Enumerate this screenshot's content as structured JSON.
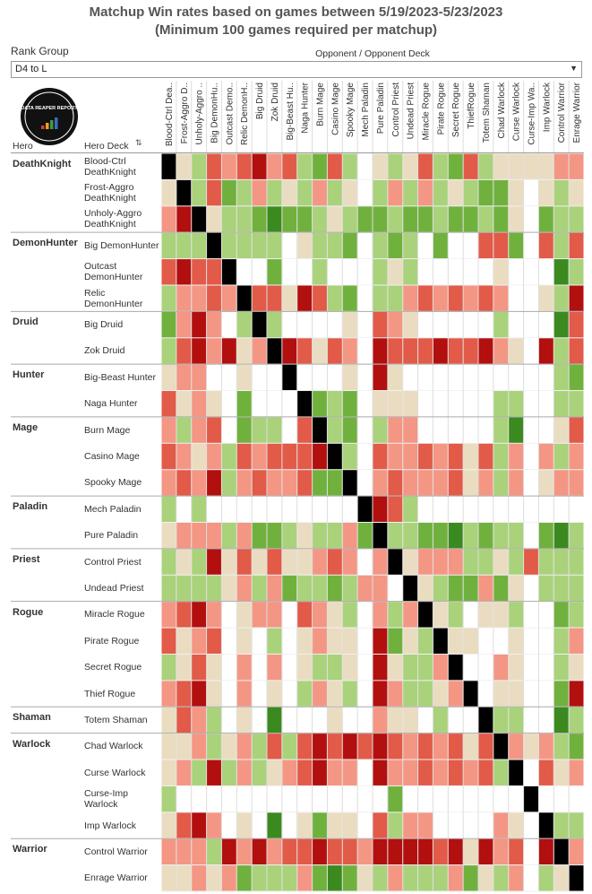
{
  "chart_data": {
    "type": "heatmap",
    "title": "Matchup Win rates based on games between 5/19/2023-5/23/2023",
    "subtitle": "(Minimum 100 games required per matchup)",
    "filter_label": "Rank Group",
    "filter_value": "D4 to L",
    "column_header": "Opponent / Opponent Deck",
    "row_header_hero": "Hero",
    "row_header_deck": "Hero Deck",
    "logo_text": "DATA REAPER REPORT",
    "columns": [
      "Blood-Ctrl Dea..",
      "Frost-Aggro D..",
      "Unholy-Aggro ..",
      "Big DemonHu..",
      "Outcast Demo..",
      "Relic DemonH..",
      "Big Druid",
      "Zok Druid",
      "Big-Beast Hu..",
      "Naga Hunter",
      "Burn Mage",
      "Casino Mage",
      "Spooky Mage",
      "Mech Paladin",
      "Pure Paladin",
      "Control Priest",
      "Undead Priest",
      "Miracle Rogue",
      "Pirate Rogue",
      "Secret Rogue",
      "ThiefRogue",
      "Totem Shaman",
      "Chad Warlock",
      "Curse Warlock",
      "Curse-Imp Wa..",
      "Imp Warlock",
      "Control Warrior",
      "Enrage Warrior"
    ],
    "row_heroes": [
      "DeathKnight",
      null,
      null,
      "DemonHunter",
      null,
      null,
      "Druid",
      null,
      "Hunter",
      null,
      "Mage",
      null,
      null,
      "Paladin",
      null,
      "Priest",
      null,
      "Rogue",
      null,
      null,
      null,
      "Shaman",
      "Warlock",
      null,
      null,
      null,
      "Warrior",
      null
    ],
    "rows": [
      "Blood-Ctrl\nDeathKnight",
      "Frost-Aggro\nDeathKnight",
      "Unholy-Aggro\nDeathKnight",
      "Big DemonHunter",
      "Outcast\nDemonHunter",
      "Relic\nDemonHunter",
      "Big Druid",
      "Zok Druid",
      "Big-Beast Hunter",
      "Naga Hunter",
      "Burn Mage",
      "Casino Mage",
      "Spooky Mage",
      "Mech Paladin",
      "Pure Paladin",
      "Control Priest",
      "Undead Priest",
      "Miracle Rogue",
      "Pirate Rogue",
      "Secret Rogue",
      "Thief Rogue",
      "Totem Shaman",
      "Chad Warlock",
      "Curse Warlock",
      "Curse-Imp\nWarlock",
      "Imp Warlock",
      "Control Warrior",
      "Enrage Warrior"
    ],
    "values": [
      [
        null,
        50,
        54,
        42,
        46,
        42,
        36,
        46,
        42,
        54,
        58,
        42,
        54,
        null,
        50,
        54,
        50,
        42,
        54,
        58,
        42,
        54,
        50,
        50,
        50,
        50,
        46,
        46
      ],
      [
        50,
        null,
        54,
        42,
        58,
        54,
        46,
        54,
        50,
        54,
        46,
        54,
        50,
        null,
        54,
        46,
        54,
        46,
        54,
        50,
        54,
        58,
        58,
        50,
        null,
        50,
        54,
        50
      ],
      [
        46,
        36,
        null,
        50,
        54,
        54,
        58,
        64,
        58,
        58,
        54,
        50,
        54,
        58,
        58,
        54,
        58,
        58,
        54,
        58,
        58,
        54,
        58,
        50,
        null,
        58,
        54,
        54
      ],
      [
        54,
        54,
        54,
        null,
        54,
        54,
        54,
        54,
        null,
        50,
        54,
        54,
        58,
        null,
        54,
        58,
        54,
        null,
        58,
        null,
        null,
        42,
        42,
        58,
        null,
        42,
        54,
        42
      ],
      [
        42,
        36,
        42,
        42,
        null,
        null,
        null,
        58,
        null,
        null,
        54,
        null,
        null,
        null,
        54,
        50,
        54,
        null,
        null,
        null,
        null,
        null,
        50,
        null,
        null,
        null,
        64,
        54
      ],
      [
        54,
        46,
        46,
        42,
        46,
        null,
        42,
        42,
        50,
        36,
        42,
        54,
        58,
        null,
        54,
        54,
        46,
        42,
        46,
        42,
        46,
        42,
        46,
        null,
        null,
        50,
        54,
        36
      ],
      [
        58,
        46,
        36,
        46,
        null,
        54,
        null,
        54,
        null,
        null,
        null,
        null,
        50,
        null,
        42,
        46,
        50,
        null,
        null,
        null,
        null,
        null,
        54,
        null,
        null,
        null,
        64,
        42
      ],
      [
        54,
        42,
        36,
        46,
        36,
        50,
        46,
        null,
        36,
        42,
        50,
        42,
        46,
        null,
        36,
        42,
        42,
        42,
        36,
        42,
        42,
        36,
        46,
        50,
        null,
        36,
        54,
        42
      ],
      [
        50,
        46,
        46,
        null,
        null,
        50,
        null,
        null,
        null,
        null,
        null,
        null,
        50,
        null,
        36,
        50,
        null,
        null,
        null,
        null,
        null,
        null,
        null,
        null,
        null,
        null,
        54,
        58
      ],
      [
        42,
        50,
        46,
        50,
        null,
        58,
        null,
        null,
        null,
        null,
        58,
        54,
        58,
        null,
        50,
        50,
        50,
        null,
        null,
        null,
        null,
        null,
        54,
        54,
        null,
        null,
        54,
        54
      ],
      [
        46,
        54,
        46,
        42,
        null,
        58,
        54,
        54,
        null,
        42,
        null,
        54,
        58,
        null,
        54,
        46,
        46,
        null,
        null,
        null,
        null,
        null,
        54,
        64,
        null,
        null,
        50,
        42
      ],
      [
        42,
        46,
        50,
        46,
        54,
        42,
        46,
        42,
        42,
        42,
        36,
        null,
        54,
        null,
        42,
        46,
        46,
        42,
        46,
        42,
        50,
        42,
        54,
        46,
        null,
        46,
        54,
        46
      ],
      [
        46,
        42,
        46,
        36,
        54,
        46,
        42,
        46,
        46,
        42,
        58,
        58,
        null,
        null,
        46,
        42,
        46,
        46,
        46,
        42,
        50,
        46,
        54,
        46,
        null,
        50,
        46,
        46
      ],
      [
        54,
        null,
        54,
        null,
        null,
        null,
        null,
        null,
        null,
        null,
        null,
        null,
        null,
        null,
        36,
        42,
        54,
        null,
        null,
        null,
        null,
        null,
        null,
        null,
        null,
        null,
        null,
        null
      ],
      [
        50,
        46,
        46,
        46,
        54,
        46,
        58,
        58,
        54,
        50,
        54,
        54,
        46,
        58,
        null,
        54,
        54,
        58,
        58,
        64,
        54,
        58,
        54,
        54,
        null,
        58,
        64,
        54
      ],
      [
        54,
        50,
        54,
        36,
        50,
        42,
        50,
        42,
        50,
        50,
        46,
        42,
        46,
        null,
        46,
        null,
        50,
        46,
        46,
        46,
        54,
        54,
        50,
        54,
        42,
        54,
        54,
        54
      ],
      [
        54,
        54,
        54,
        54,
        50,
        46,
        54,
        46,
        58,
        54,
        54,
        58,
        54,
        46,
        46,
        null,
        null,
        50,
        54,
        58,
        58,
        46,
        58,
        50,
        null,
        54,
        54,
        54
      ],
      [
        46,
        42,
        36,
        46,
        null,
        50,
        46,
        46,
        null,
        42,
        46,
        50,
        54,
        null,
        46,
        54,
        46,
        null,
        50,
        54,
        null,
        50,
        50,
        54,
        null,
        null,
        58,
        54
      ],
      [
        42,
        50,
        46,
        42,
        null,
        50,
        null,
        54,
        null,
        50,
        46,
        50,
        50,
        null,
        36,
        58,
        50,
        54,
        null,
        50,
        50,
        null,
        null,
        50,
        null,
        null,
        54,
        46
      ],
      [
        54,
        50,
        42,
        50,
        null,
        46,
        null,
        46,
        null,
        50,
        54,
        54,
        50,
        null,
        36,
        50,
        54,
        54,
        46,
        null,
        null,
        null,
        46,
        50,
        null,
        null,
        54,
        50
      ],
      [
        46,
        42,
        36,
        50,
        null,
        46,
        null,
        50,
        null,
        54,
        46,
        50,
        54,
        null,
        36,
        46,
        54,
        54,
        50,
        46,
        null,
        null,
        50,
        50,
        null,
        null,
        58,
        36
      ],
      [
        50,
        42,
        46,
        54,
        null,
        50,
        null,
        64,
        null,
        null,
        null,
        50,
        null,
        null,
        46,
        50,
        50,
        null,
        54,
        null,
        null,
        null,
        54,
        54,
        null,
        null,
        64,
        54
      ],
      [
        50,
        50,
        46,
        54,
        50,
        46,
        54,
        42,
        54,
        42,
        36,
        42,
        36,
        42,
        36,
        42,
        46,
        42,
        46,
        42,
        50,
        42,
        null,
        46,
        50,
        46,
        54,
        58
      ],
      [
        50,
        46,
        54,
        36,
        54,
        46,
        54,
        50,
        46,
        42,
        36,
        46,
        46,
        null,
        36,
        46,
        46,
        42,
        46,
        42,
        46,
        42,
        54,
        null,
        null,
        42,
        50,
        46
      ],
      [
        54,
        null,
        null,
        null,
        null,
        null,
        null,
        null,
        null,
        null,
        null,
        null,
        null,
        null,
        null,
        58,
        null,
        null,
        null,
        null,
        null,
        null,
        null,
        null,
        null,
        null,
        null,
        null
      ],
      [
        50,
        42,
        36,
        46,
        null,
        50,
        null,
        64,
        null,
        50,
        58,
        50,
        50,
        null,
        42,
        54,
        46,
        46,
        null,
        null,
        null,
        null,
        46,
        50,
        null,
        null,
        54,
        54
      ],
      [
        46,
        46,
        46,
        54,
        36,
        46,
        36,
        46,
        42,
        42,
        36,
        42,
        42,
        46,
        36,
        36,
        36,
        36,
        42,
        36,
        50,
        36,
        46,
        42,
        null,
        36,
        null,
        46
      ],
      [
        50,
        50,
        46,
        50,
        46,
        58,
        54,
        54,
        54,
        46,
        58,
        64,
        58,
        50,
        54,
        46,
        54,
        54,
        54,
        46,
        58,
        50,
        54,
        46,
        null,
        54,
        50,
        null
      ]
    ],
    "color_stops": [
      [
        36,
        "#b20f0f"
      ],
      [
        42,
        "#e25a48"
      ],
      [
        46,
        "#f49684"
      ],
      [
        50,
        "#eadcc0"
      ],
      [
        54,
        "#a9d27b"
      ],
      [
        58,
        "#70b13e"
      ],
      [
        64,
        "#3b8a1f"
      ]
    ],
    "mirror_color": "#000000"
  }
}
